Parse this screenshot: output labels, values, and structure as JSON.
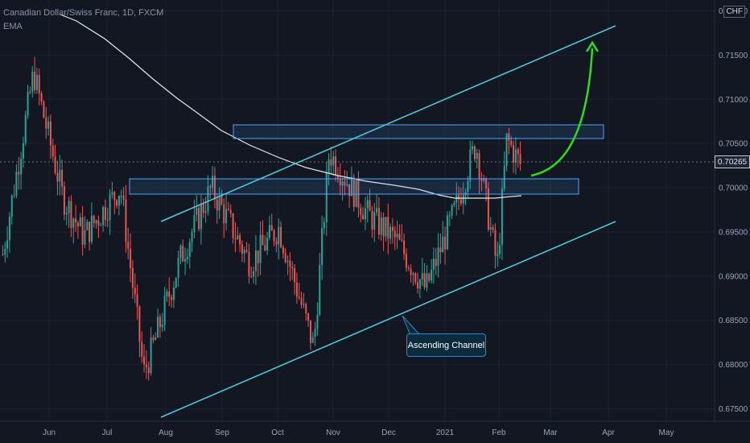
{
  "header": {
    "symbol": "Canadian Dollar/Swiss Franc, 1D, FXCM",
    "indicator": "EMA"
  },
  "price_axis": {
    "currency": "CHF",
    "current_price": "0.70265",
    "labels": [
      "0.72000",
      "0.71500",
      "0.71000",
      "0.70500",
      "0.70000",
      "0.69500",
      "0.69000",
      "0.68500",
      "0.68000",
      "0.67500"
    ]
  },
  "time_axis": {
    "labels": [
      "Jun",
      "Jul",
      "Aug",
      "Sep",
      "Oct",
      "Nov",
      "Dec",
      "2021",
      "Feb",
      "Mar",
      "Apr",
      "May"
    ]
  },
  "annotations": {
    "channel_label": "Ascending Channel"
  },
  "colors": {
    "background": "#131722",
    "up_candle": "#26a69a",
    "down_candle": "#ef5350",
    "channel_line": "#4dd0e1",
    "zone_border": "#4aa3ff",
    "ema_line": "#e8e8e8",
    "arrow": "#2ddc1f"
  },
  "chart_data": {
    "type": "candlestick",
    "title": "Canadian Dollar/Swiss Franc, 1D, FXCM",
    "ylim": [
      0.6745,
      0.7205
    ],
    "y_ticks": [
      0.675,
      0.68,
      0.685,
      0.69,
      0.695,
      0.7,
      0.705,
      0.71,
      0.715,
      0.72
    ],
    "x_ticks": [
      "Jun",
      "Jul",
      "Aug",
      "Sep",
      "Oct",
      "Nov",
      "Dec",
      "2021",
      "Feb",
      "Mar",
      "Apr",
      "May"
    ],
    "last_price": 0.70265,
    "series": [
      {
        "x": "2020-05-20",
        "close": 0.6925
      },
      {
        "x": "2020-06-05",
        "close": 0.713
      },
      {
        "x": "2020-06-20",
        "close": 0.699
      },
      {
        "x": "2020-07-01",
        "close": 0.6945
      },
      {
        "x": "2020-07-20",
        "close": 0.7
      },
      {
        "x": "2020-08-01",
        "close": 0.679
      },
      {
        "x": "2020-08-05",
        "close": 0.6815
      },
      {
        "x": "2020-08-20",
        "close": 0.692
      },
      {
        "x": "2020-09-05",
        "close": 0.7
      },
      {
        "x": "2020-09-25",
        "close": 0.6915
      },
      {
        "x": "2020-10-10",
        "close": 0.6955
      },
      {
        "x": "2020-10-28",
        "close": 0.682
      },
      {
        "x": "2020-11-05",
        "close": 0.704
      },
      {
        "x": "2020-11-25",
        "close": 0.697
      },
      {
        "x": "2020-12-10",
        "close": 0.694
      },
      {
        "x": "2020-12-25",
        "close": 0.6885
      },
      {
        "x": "2021-01-10",
        "close": 0.698
      },
      {
        "x": "2021-01-20",
        "close": 0.705
      },
      {
        "x": "2021-01-31",
        "close": 0.691
      },
      {
        "x": "2021-02-05",
        "close": 0.7055
      },
      {
        "x": "2021-02-12",
        "close": 0.70265
      }
    ]
  }
}
